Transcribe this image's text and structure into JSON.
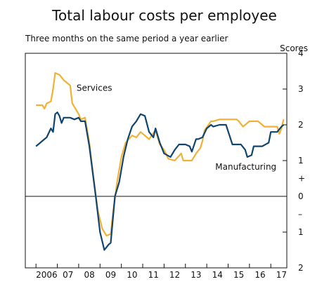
{
  "chart_data": {
    "type": "line",
    "title": "Total labour costs per employee",
    "subtitle": "Three months on the same period a year earlier",
    "ylabel": "Scores",
    "ylim": [
      -2,
      4
    ],
    "y_ticks": [
      {
        "value": 4,
        "label": "4"
      },
      {
        "value": 3,
        "label": "3"
      },
      {
        "value": 2,
        "label": "2"
      },
      {
        "value": 1,
        "label": "1"
      },
      {
        "value": 0,
        "label": "0"
      },
      {
        "value": -1,
        "label": "1"
      },
      {
        "value": -2,
        "label": "2"
      }
    ],
    "sign_labels": {
      "plus": "+",
      "minus": "–"
    },
    "x_ticks": [
      "2006",
      "07",
      "08",
      "09",
      "10",
      "11",
      "12",
      "13",
      "14",
      "15",
      "16",
      "17"
    ],
    "x_start_year": 2006,
    "xlim": [
      2005.5,
      2017.75
    ],
    "series": [
      {
        "name": "Services",
        "color": "#f2b134",
        "points": [
          [
            2006.0,
            2.55
          ],
          [
            2006.3,
            2.55
          ],
          [
            2006.4,
            2.45
          ],
          [
            2006.5,
            2.6
          ],
          [
            2006.7,
            2.65
          ],
          [
            2006.8,
            3.0
          ],
          [
            2006.9,
            3.45
          ],
          [
            2007.1,
            3.4
          ],
          [
            2007.3,
            3.25
          ],
          [
            2007.6,
            3.1
          ],
          [
            2007.7,
            2.6
          ],
          [
            2007.9,
            2.4
          ],
          [
            2008.0,
            2.3
          ],
          [
            2008.1,
            2.15
          ],
          [
            2008.3,
            2.2
          ],
          [
            2008.5,
            1.5
          ],
          [
            2008.7,
            0.5
          ],
          [
            2008.9,
            -0.4
          ],
          [
            2009.1,
            -0.9
          ],
          [
            2009.3,
            -1.1
          ],
          [
            2009.5,
            -1.05
          ],
          [
            2009.6,
            -0.5
          ],
          [
            2009.8,
            0.4
          ],
          [
            2010.0,
            1.1
          ],
          [
            2010.2,
            1.5
          ],
          [
            2010.5,
            1.7
          ],
          [
            2010.7,
            1.65
          ],
          [
            2010.9,
            1.8
          ],
          [
            2011.1,
            1.7
          ],
          [
            2011.3,
            1.6
          ],
          [
            2011.6,
            1.85
          ],
          [
            2011.8,
            1.45
          ],
          [
            2012.0,
            1.3
          ],
          [
            2012.2,
            1.05
          ],
          [
            2012.5,
            1.0
          ],
          [
            2012.8,
            1.2
          ],
          [
            2012.9,
            1.0
          ],
          [
            2013.3,
            1.0
          ],
          [
            2013.5,
            1.2
          ],
          [
            2013.7,
            1.35
          ],
          [
            2013.8,
            1.55
          ],
          [
            2013.9,
            1.85
          ],
          [
            2014.2,
            2.1
          ],
          [
            2014.3,
            2.1
          ],
          [
            2014.6,
            2.15
          ],
          [
            2015.4,
            2.15
          ],
          [
            2015.5,
            2.1
          ],
          [
            2015.7,
            1.95
          ],
          [
            2016.0,
            2.1
          ],
          [
            2016.4,
            2.1
          ],
          [
            2016.7,
            1.95
          ],
          [
            2017.3,
            1.95
          ],
          [
            2017.4,
            1.75
          ],
          [
            2017.5,
            1.9
          ],
          [
            2017.6,
            2.15
          ]
        ]
      },
      {
        "name": "Manufacturing",
        "color": "#10456f",
        "points": [
          [
            2006.0,
            1.4
          ],
          [
            2006.2,
            1.5
          ],
          [
            2006.4,
            1.6
          ],
          [
            2006.5,
            1.65
          ],
          [
            2006.7,
            1.9
          ],
          [
            2006.8,
            1.8
          ],
          [
            2006.9,
            2.3
          ],
          [
            2007.0,
            2.35
          ],
          [
            2007.1,
            2.25
          ],
          [
            2007.2,
            2.05
          ],
          [
            2007.3,
            2.2
          ],
          [
            2007.6,
            2.2
          ],
          [
            2007.8,
            2.15
          ],
          [
            2008.0,
            2.2
          ],
          [
            2008.1,
            2.1
          ],
          [
            2008.3,
            2.1
          ],
          [
            2008.5,
            1.4
          ],
          [
            2008.8,
            0.0
          ],
          [
            2009.0,
            -1.0
          ],
          [
            2009.2,
            -1.5
          ],
          [
            2009.4,
            -1.35
          ],
          [
            2009.5,
            -1.3
          ],
          [
            2009.7,
            0.0
          ],
          [
            2009.9,
            0.4
          ],
          [
            2010.1,
            1.1
          ],
          [
            2010.3,
            1.6
          ],
          [
            2010.5,
            1.95
          ],
          [
            2010.7,
            2.1
          ],
          [
            2010.9,
            2.3
          ],
          [
            2011.1,
            2.25
          ],
          [
            2011.3,
            1.8
          ],
          [
            2011.5,
            1.65
          ],
          [
            2011.6,
            1.9
          ],
          [
            2011.8,
            1.5
          ],
          [
            2012.0,
            1.2
          ],
          [
            2012.3,
            1.1
          ],
          [
            2012.5,
            1.3
          ],
          [
            2012.7,
            1.45
          ],
          [
            2013.0,
            1.45
          ],
          [
            2013.2,
            1.4
          ],
          [
            2013.3,
            1.25
          ],
          [
            2013.5,
            1.6
          ],
          [
            2013.6,
            1.6
          ],
          [
            2013.8,
            1.65
          ],
          [
            2014.0,
            1.9
          ],
          [
            2014.2,
            2.0
          ],
          [
            2014.3,
            1.95
          ],
          [
            2014.6,
            2.0
          ],
          [
            2014.9,
            2.0
          ],
          [
            2015.2,
            1.45
          ],
          [
            2015.6,
            1.45
          ],
          [
            2015.8,
            1.3
          ],
          [
            2015.9,
            1.1
          ],
          [
            2016.1,
            1.15
          ],
          [
            2016.2,
            1.4
          ],
          [
            2016.6,
            1.4
          ],
          [
            2016.9,
            1.5
          ],
          [
            2017.0,
            1.8
          ],
          [
            2017.3,
            1.8
          ],
          [
            2017.5,
            1.95
          ],
          [
            2017.6,
            2.0
          ]
        ]
      }
    ],
    "annotations": [
      {
        "text": "Services",
        "series": 0
      },
      {
        "text": "Manufacturing",
        "series": 1
      }
    ]
  }
}
